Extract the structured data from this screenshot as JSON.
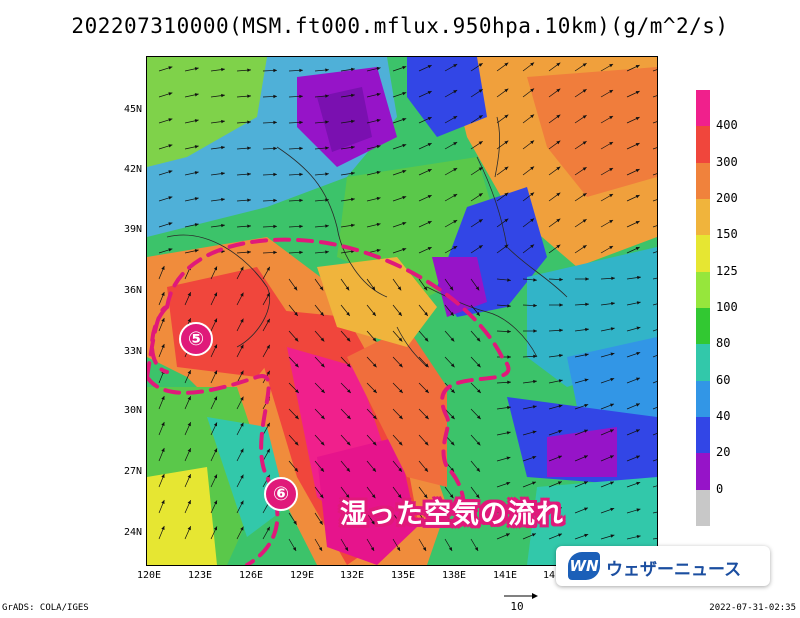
{
  "title": "202207310000(MSM.ft000.mflux.950hpa.10km)(g/m^2/s)",
  "lat_labels": [
    "45N",
    "42N",
    "39N",
    "36N",
    "33N",
    "30N",
    "27N",
    "24N"
  ],
  "lon_labels": [
    "120E",
    "123E",
    "126E",
    "129E",
    "132E",
    "135E",
    "138E",
    "141E",
    "14"
  ],
  "colorbar": {
    "labels": [
      "400",
      "300",
      "200",
      "150",
      "125",
      "100",
      "80",
      "60",
      "40",
      "20",
      "0"
    ],
    "colors": [
      "#f0208c",
      "#f0463c",
      "#f0823c",
      "#f0b43c",
      "#e6e632",
      "#96e63c",
      "#32c832",
      "#32c8aa",
      "#3296e6",
      "#3246e6",
      "#9614c8",
      "#c8c8c8"
    ]
  },
  "annotation": {
    "text": "湿った空気の流れ",
    "marker_5": "⑤",
    "marker_6": "⑥",
    "color": "#e0197a"
  },
  "footer": {
    "left": "GrADS: COLA/IGES",
    "right": "2022-07-31-02:35",
    "ref_vector_label": "10"
  },
  "logo": {
    "mark": "WN",
    "text": "ウェザーニュース",
    "color": "#1b5fb8"
  }
}
